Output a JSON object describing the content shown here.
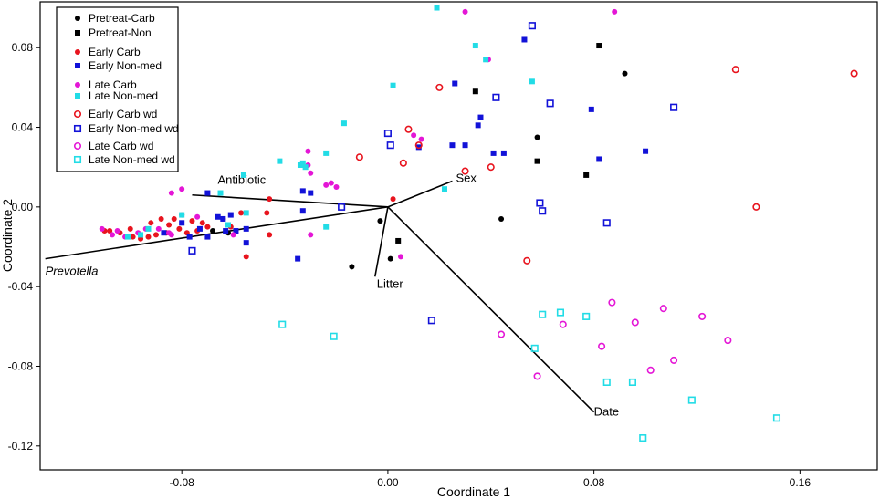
{
  "chart_data": {
    "type": "scatter",
    "title": "",
    "xlabel": "Coordinate 1",
    "ylabel": "Coordinate 2",
    "xlim": [
      -0.135,
      0.19
    ],
    "ylim": [
      -0.132,
      0.103
    ],
    "xticks": [
      {
        "value": -0.08,
        "label": "-0.08"
      },
      {
        "value": 0.0,
        "label": "0.00"
      },
      {
        "value": 0.08,
        "label": "0.08"
      },
      {
        "value": 0.16,
        "label": "0.16"
      }
    ],
    "yticks": [
      {
        "value": 0.08,
        "label": "0.08"
      },
      {
        "value": 0.04,
        "label": "0.04"
      },
      {
        "value": 0.0,
        "label": "0.00"
      },
      {
        "value": -0.04,
        "label": "-0.04"
      },
      {
        "value": -0.08,
        "label": "-0.08"
      },
      {
        "value": -0.12,
        "label": "-0.12"
      }
    ],
    "grid": false,
    "legend_position": "top-left",
    "series": [
      {
        "name": "Pretreat-Carb",
        "marker": "circle",
        "filled": true,
        "color": "#000000",
        "points": [
          [
            0.092,
            0.067
          ],
          [
            0.058,
            0.035
          ],
          [
            0.044,
            -0.006
          ],
          [
            -0.014,
            -0.03
          ],
          [
            -0.003,
            -0.007
          ],
          [
            0.001,
            -0.026
          ],
          [
            -0.062,
            -0.013
          ],
          [
            -0.068,
            -0.012
          ]
        ]
      },
      {
        "name": "Pretreat-Non",
        "marker": "square",
        "filled": true,
        "color": "#000000",
        "points": [
          [
            0.082,
            0.081
          ],
          [
            0.034,
            0.058
          ],
          [
            0.058,
            0.023
          ],
          [
            0.077,
            0.016
          ],
          [
            0.004,
            -0.017
          ]
        ]
      },
      {
        "name": "Early Carb",
        "marker": "circle",
        "filled": true,
        "color": "#e8141e",
        "points": [
          [
            -0.11,
            -0.012
          ],
          [
            -0.108,
            -0.012
          ],
          [
            -0.104,
            -0.013
          ],
          [
            -0.1,
            -0.011
          ],
          [
            -0.099,
            -0.015
          ],
          [
            -0.096,
            -0.016
          ],
          [
            -0.093,
            -0.015
          ],
          [
            -0.092,
            -0.008
          ],
          [
            -0.09,
            -0.014
          ],
          [
            -0.088,
            -0.006
          ],
          [
            -0.086,
            -0.013
          ],
          [
            -0.085,
            -0.009
          ],
          [
            -0.083,
            -0.006
          ],
          [
            -0.081,
            -0.011
          ],
          [
            -0.08,
            -0.004
          ],
          [
            -0.078,
            -0.013
          ],
          [
            -0.076,
            -0.007
          ],
          [
            -0.074,
            -0.012
          ],
          [
            -0.072,
            -0.008
          ],
          [
            -0.07,
            -0.01
          ],
          [
            -0.064,
            -0.006
          ],
          [
            -0.061,
            -0.01
          ],
          [
            -0.057,
            -0.003
          ],
          [
            -0.055,
            -0.025
          ],
          [
            -0.047,
            -0.003
          ],
          [
            -0.046,
            -0.014
          ],
          [
            -0.046,
            0.004
          ],
          [
            0.002,
            0.004
          ]
        ]
      },
      {
        "name": "Early Non-med",
        "marker": "square",
        "filled": true,
        "color": "#1212d8",
        "points": [
          [
            -0.087,
            -0.013
          ],
          [
            -0.08,
            -0.008
          ],
          [
            -0.077,
            -0.015
          ],
          [
            -0.073,
            -0.011
          ],
          [
            -0.07,
            -0.015
          ],
          [
            -0.066,
            -0.005
          ],
          [
            -0.064,
            -0.006
          ],
          [
            -0.063,
            -0.012
          ],
          [
            -0.061,
            -0.004
          ],
          [
            -0.059,
            -0.012
          ],
          [
            -0.055,
            -0.011
          ],
          [
            -0.055,
            -0.018
          ],
          [
            -0.07,
            0.007
          ],
          [
            -0.033,
            0.008
          ],
          [
            -0.03,
            0.007
          ],
          [
            -0.033,
            -0.002
          ],
          [
            -0.035,
            -0.026
          ],
          [
            0.026,
            0.062
          ],
          [
            0.035,
            0.041
          ],
          [
            0.025,
            0.031
          ],
          [
            0.03,
            0.031
          ],
          [
            0.036,
            0.045
          ],
          [
            0.041,
            0.027
          ],
          [
            0.045,
            0.027
          ],
          [
            0.053,
            0.084
          ],
          [
            0.079,
            0.049
          ],
          [
            0.082,
            0.024
          ],
          [
            0.1,
            0.028
          ],
          [
            0.012,
            0.03
          ]
        ]
      },
      {
        "name": "Late Carb",
        "marker": "circle",
        "filled": true,
        "color": "#e416d6",
        "points": [
          [
            -0.111,
            -0.011
          ],
          [
            -0.107,
            -0.014
          ],
          [
            -0.105,
            -0.012
          ],
          [
            -0.102,
            -0.015
          ],
          [
            -0.097,
            -0.013
          ],
          [
            -0.094,
            -0.011
          ],
          [
            -0.089,
            -0.011
          ],
          [
            -0.085,
            -0.013
          ],
          [
            -0.084,
            -0.014
          ],
          [
            -0.08,
            0.009
          ],
          [
            -0.084,
            0.007
          ],
          [
            -0.074,
            -0.005
          ],
          [
            -0.06,
            -0.014
          ],
          [
            -0.03,
            0.017
          ],
          [
            -0.031,
            0.021
          ],
          [
            -0.031,
            0.028
          ],
          [
            -0.024,
            0.011
          ],
          [
            -0.022,
            0.012
          ],
          [
            -0.02,
            0.01
          ],
          [
            -0.03,
            -0.014
          ],
          [
            0.01,
            0.036
          ],
          [
            0.013,
            0.034
          ],
          [
            0.03,
            0.098
          ],
          [
            0.039,
            0.074
          ],
          [
            0.088,
            0.098
          ],
          [
            0.005,
            -0.025
          ]
        ]
      },
      {
        "name": "Late Non-med",
        "marker": "square",
        "filled": true,
        "color": "#22dce6",
        "points": [
          [
            -0.101,
            -0.015
          ],
          [
            -0.096,
            -0.014
          ],
          [
            -0.093,
            -0.011
          ],
          [
            -0.08,
            -0.004
          ],
          [
            -0.062,
            -0.009
          ],
          [
            -0.056,
            0.016
          ],
          [
            -0.065,
            0.007
          ],
          [
            -0.055,
            -0.003
          ],
          [
            -0.042,
            0.023
          ],
          [
            -0.034,
            0.021
          ],
          [
            -0.033,
            0.022
          ],
          [
            -0.032,
            0.02
          ],
          [
            -0.024,
            0.027
          ],
          [
            -0.017,
            0.042
          ],
          [
            -0.024,
            -0.01
          ],
          [
            0.002,
            0.061
          ],
          [
            0.019,
            0.1
          ],
          [
            0.034,
            0.081
          ],
          [
            0.038,
            0.074
          ],
          [
            0.056,
            0.063
          ],
          [
            0.022,
            0.009
          ]
        ]
      },
      {
        "name": "Early Carb wd",
        "marker": "circle",
        "filled": false,
        "color": "#e8141e",
        "points": [
          [
            -0.011,
            0.025
          ],
          [
            0.006,
            0.022
          ],
          [
            0.008,
            0.039
          ],
          [
            0.012,
            0.031
          ],
          [
            0.02,
            0.06
          ],
          [
            0.03,
            0.018
          ],
          [
            0.04,
            0.02
          ],
          [
            0.054,
            -0.027
          ],
          [
            0.135,
            0.069
          ],
          [
            0.181,
            0.067
          ],
          [
            0.143,
            0.0
          ]
        ]
      },
      {
        "name": "Early Non-med wd",
        "marker": "square",
        "filled": false,
        "color": "#1212d8",
        "points": [
          [
            -0.076,
            -0.022
          ],
          [
            -0.018,
            0.0
          ],
          [
            0.0,
            0.037
          ],
          [
            0.001,
            0.031
          ],
          [
            0.017,
            -0.057
          ],
          [
            0.042,
            0.055
          ],
          [
            0.056,
            0.091
          ],
          [
            0.063,
            0.052
          ],
          [
            0.059,
            0.002
          ],
          [
            0.06,
            -0.002
          ],
          [
            0.085,
            -0.008
          ],
          [
            0.111,
            0.05
          ]
        ]
      },
      {
        "name": "Late Carb wd",
        "marker": "circle",
        "filled": false,
        "color": "#e416d6",
        "points": [
          [
            0.044,
            -0.064
          ],
          [
            0.058,
            -0.085
          ],
          [
            0.068,
            -0.059
          ],
          [
            0.083,
            -0.07
          ],
          [
            0.087,
            -0.048
          ],
          [
            0.096,
            -0.058
          ],
          [
            0.102,
            -0.082
          ],
          [
            0.107,
            -0.051
          ],
          [
            0.111,
            -0.077
          ],
          [
            0.122,
            -0.055
          ],
          [
            0.132,
            -0.067
          ]
        ]
      },
      {
        "name": "Late Non-med wd",
        "marker": "square",
        "filled": false,
        "color": "#22dce6",
        "points": [
          [
            -0.041,
            -0.059
          ],
          [
            -0.021,
            -0.065
          ],
          [
            0.057,
            -0.071
          ],
          [
            0.06,
            -0.054
          ],
          [
            0.067,
            -0.053
          ],
          [
            0.077,
            -0.055
          ],
          [
            0.085,
            -0.088
          ],
          [
            0.095,
            -0.088
          ],
          [
            0.099,
            -0.116
          ],
          [
            0.118,
            -0.097
          ],
          [
            0.151,
            -0.106
          ]
        ]
      }
    ],
    "vectors": [
      {
        "label": "Antibiotic",
        "italic": false,
        "end": [
          -0.076,
          0.006
        ]
      },
      {
        "label": "Prevotella",
        "italic": true,
        "end": [
          -0.133,
          -0.026
        ]
      },
      {
        "label": "Sex",
        "italic": false,
        "end": [
          0.025,
          0.013
        ]
      },
      {
        "label": "Litter",
        "italic": false,
        "end": [
          -0.005,
          -0.035
        ]
      },
      {
        "label": "Date",
        "italic": false,
        "end": [
          0.08,
          -0.103
        ]
      }
    ]
  }
}
